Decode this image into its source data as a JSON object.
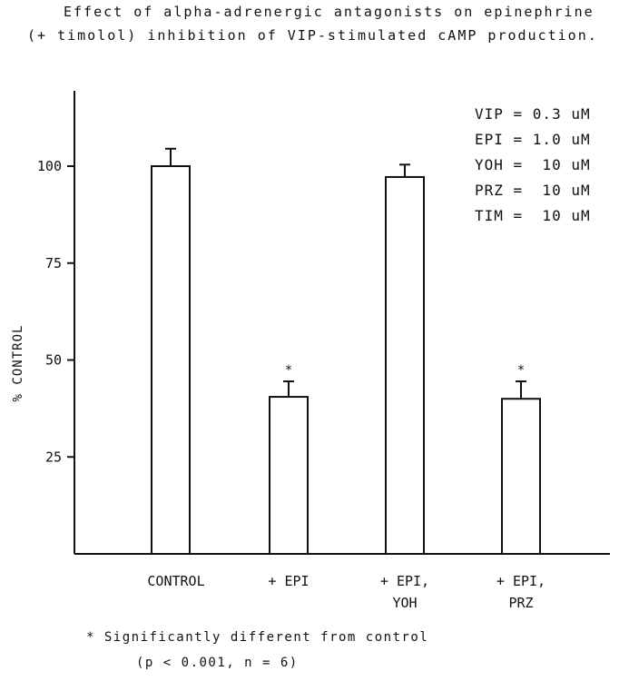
{
  "chart_data": {
    "type": "bar",
    "title_line1": "Effect of alpha-adrenergic antagonists on epinephrine",
    "title_line2": "(+ timolol) inhibition of VIP-stimulated cAMP production.",
    "ylabel": "% CONTROL",
    "ylim": [
      0,
      100
    ],
    "yticks": [
      "100",
      "75",
      "50",
      "25"
    ],
    "categories": [
      "CONTROL",
      "+ EPI",
      "+ EPI,\nYOH",
      "+ EPI,\nPRZ"
    ],
    "category_lines": [
      [
        "CONTROL"
      ],
      [
        "+ EPI"
      ],
      [
        "+ EPI,",
        "YOH"
      ],
      [
        "+ EPI,",
        "PRZ"
      ]
    ],
    "values": [
      100,
      40.5,
      97.2,
      40.0
    ],
    "errors": [
      4.5,
      4.0,
      3.2,
      4.5
    ],
    "significant": [
      false,
      true,
      false,
      true
    ],
    "significance_marker": "*",
    "legend_lines": [
      "VIP = 0.3 uM",
      "EPI = 1.0 uM",
      "YOH =  10 uM",
      "PRZ =  10 uM",
      "TIM =  10 uM"
    ],
    "footnote_line1": "*  Significantly different from control",
    "footnote_line2": "(p < 0.001, n = 6)"
  }
}
